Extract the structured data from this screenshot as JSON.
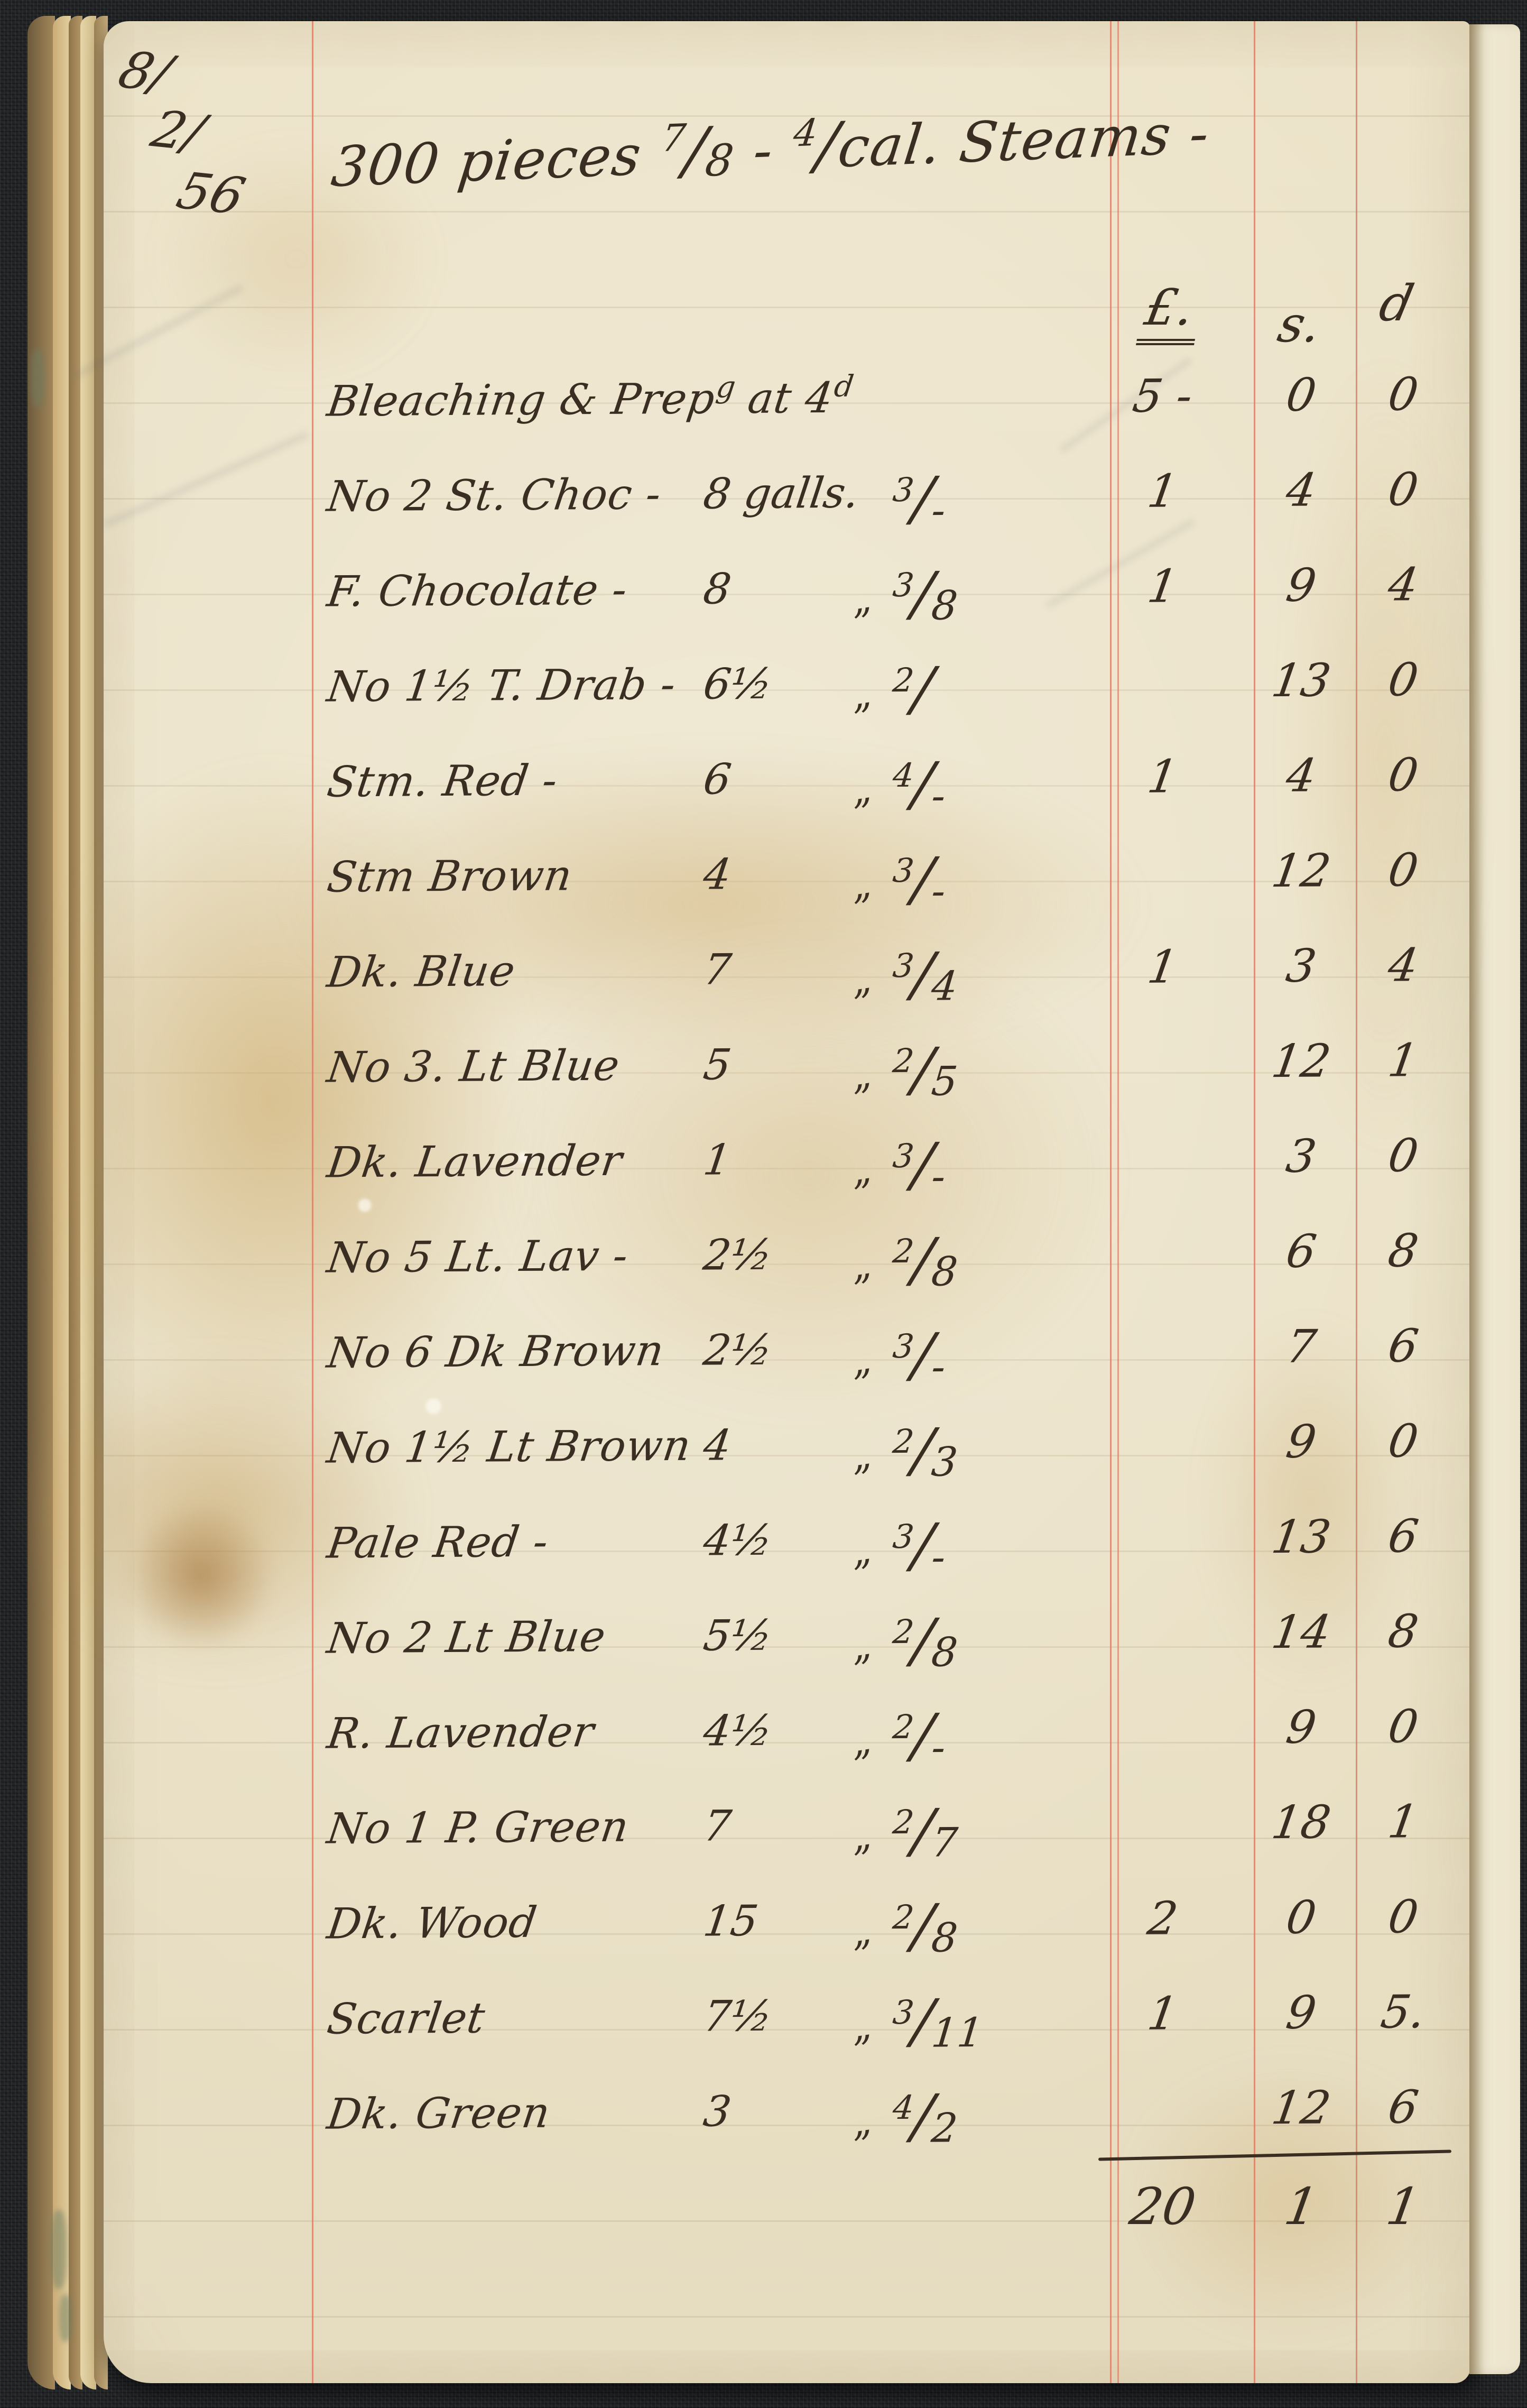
{
  "date_parts": [
    "8/",
    "2/",
    "56"
  ],
  "title": {
    "p1": "300 pieces",
    "f1n": "7",
    "f1sl": "/",
    "f1d": "8",
    "dash": "-",
    "f2n": "4",
    "f2sl": "/",
    "p2": "cal.",
    "p3": "Steams -"
  },
  "columns": {
    "pound": "£.",
    "shillings": "s.",
    "pence": "d"
  },
  "rows": [
    {
      "desc": "Bleaching & Prep",
      "sup1": "g",
      "descb": " at 4",
      "sup2": "d",
      "qty": "",
      "ditto": "",
      "pn": "",
      "pd": "",
      "l": "5 -",
      "s": "0",
      "d": "0"
    },
    {
      "desc": "No 2 St. Choc -",
      "qty": "8 galls.",
      "ditto": "",
      "pn": "3",
      "pd": "-",
      "l": "1",
      "s": "4",
      "d": "0"
    },
    {
      "desc": "F. Chocolate -",
      "qty": "8",
      "ditto": "„",
      "pn": "3",
      "pd": "8",
      "l": "1",
      "s": "9",
      "d": "4"
    },
    {
      "desc": "No 1½ T. Drab -",
      "qty": "6½",
      "ditto": "„",
      "pn": "2",
      "pd": "",
      "l": "",
      "s": "13",
      "d": "0"
    },
    {
      "desc": "Stm. Red -",
      "qty": "6",
      "ditto": "„",
      "pn": "4",
      "pd": "-",
      "l": "1",
      "s": "4",
      "d": "0"
    },
    {
      "desc": "Stm Brown",
      "qty": "4",
      "ditto": "„",
      "pn": "3",
      "pd": "-",
      "l": "",
      "s": "12",
      "d": "0"
    },
    {
      "desc": "Dk. Blue",
      "qty": "7",
      "ditto": "„",
      "pn": "3",
      "pd": "4",
      "l": "1",
      "s": "3",
      "d": "4"
    },
    {
      "desc": "No 3. Lt Blue",
      "qty": "5",
      "ditto": "„",
      "pn": "2",
      "pd": "5",
      "l": "",
      "s": "12",
      "d": "1"
    },
    {
      "desc": "Dk. Lavender",
      "qty": "1",
      "ditto": "„",
      "pn": "3",
      "pd": "-",
      "l": "",
      "s": "3",
      "d": "0"
    },
    {
      "desc": "No 5 Lt. Lav -",
      "qty": "2½",
      "ditto": "„",
      "pn": "2",
      "pd": "8",
      "l": "",
      "s": "6",
      "d": "8"
    },
    {
      "desc": "No 6 Dk Brown",
      "qty": "2½",
      "ditto": "„",
      "pn": "3",
      "pd": "-",
      "l": "",
      "s": "7",
      "d": "6"
    },
    {
      "desc": "No 1½ Lt Brown",
      "qty": "4",
      "ditto": "„",
      "pn": "2",
      "pd": "3",
      "l": "",
      "s": "9",
      "d": "0"
    },
    {
      "desc": "Pale Red -",
      "qty": "4½",
      "ditto": "„",
      "pn": "3",
      "pd": "-",
      "l": "",
      "s": "13",
      "d": "6"
    },
    {
      "desc": "No 2 Lt Blue",
      "qty": "5½",
      "ditto": "„",
      "pn": "2",
      "pd": "8",
      "l": "",
      "s": "14",
      "d": "8"
    },
    {
      "desc": "R. Lavender",
      "qty": "4½",
      "ditto": "„",
      "pn": "2",
      "pd": "-",
      "l": "",
      "s": "9",
      "d": "0"
    },
    {
      "desc": "No 1 P. Green",
      "qty": "7",
      "ditto": "„",
      "pn": "2",
      "pd": "7",
      "l": "",
      "s": "18",
      "d": "1"
    },
    {
      "desc": "Dk. Wood",
      "qty": "15",
      "ditto": "„",
      "pn": "2",
      "pd": "8",
      "l": "2",
      "s": "0",
      "d": "0"
    },
    {
      "desc": "Scarlet",
      "qty": "7½",
      "ditto": "„",
      "pn": "3",
      "pd": "11",
      "l": "1",
      "s": "9",
      "d": "5."
    },
    {
      "desc": "Dk. Green",
      "qty": "3",
      "ditto": "„",
      "pn": "4",
      "pd": "2",
      "l": "",
      "s": "12",
      "d": "6"
    }
  ],
  "total": {
    "l": "20",
    "s": "1",
    "d": "1"
  },
  "ink_color": "#3a2d21",
  "paper_color": "#eae1c6",
  "rule_color": "#d87a60"
}
